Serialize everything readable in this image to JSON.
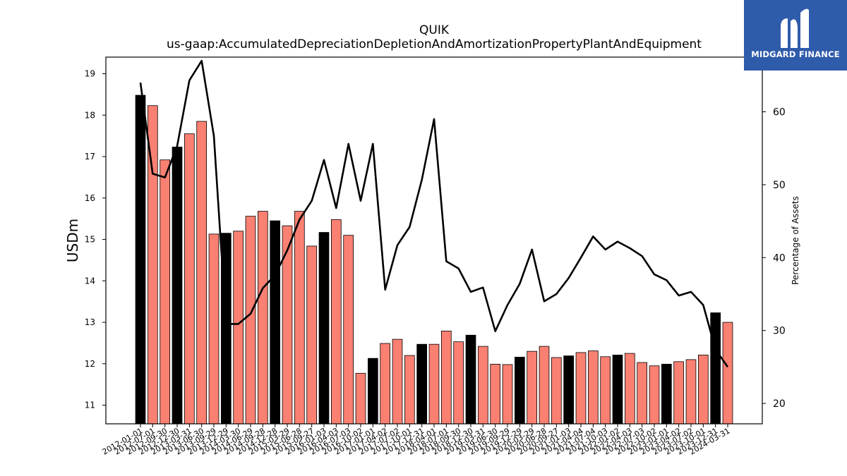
{
  "brand": {
    "name": "MIDGARD FINANCE",
    "logo_color": "#2f5bab"
  },
  "chart_data": {
    "type": "bar",
    "title": "QUIK",
    "subtitle": "us-gaap:AccumulatedDepreciationDepletionAndAmortizationPropertyPlantAndEquipment",
    "ylabel": "USDm",
    "y2label": "Percentage of Assets",
    "ylim": [
      10.55,
      19.4
    ],
    "y2lim": [
      17.2,
      67.5
    ],
    "yticks": [
      11,
      12,
      13,
      14,
      15,
      16,
      17,
      18,
      19
    ],
    "y2ticks": [
      20,
      30,
      40,
      50,
      60
    ],
    "categories": [
      "2012-01-01",
      "2012-07-01",
      "2012-09-30",
      "2012-12-30",
      "2013-03-31",
      "2013-06-30",
      "2013-09-29",
      "2013-12-29",
      "2014-03-30",
      "2014-06-29",
      "2014-09-28",
      "2014-12-28",
      "2015-03-29",
      "2015-06-28",
      "2015-09-27",
      "2016-01-03",
      "2016-04-03",
      "2016-07-03",
      "2016-10-02",
      "2017-01-01",
      "2017-04-02",
      "2017-07-02",
      "2017-10-01",
      "2017-12-31",
      "2018-04-01",
      "2018-07-01",
      "2018-09-30",
      "2018-12-30",
      "2019-03-31",
      "2019-06-30",
      "2019-09-29",
      "2019-12-29",
      "2020-03-29",
      "2020-06-28",
      "2020-09-27",
      "2021-01-03",
      "2021-04-04",
      "2021-07-04",
      "2021-10-03",
      "2022-01-02",
      "2022-04-03",
      "2022-07-03",
      "2022-10-02",
      "2023-01-01",
      "2023-04-02",
      "2023-07-02",
      "2023-10-01",
      "2023-12-31",
      "2024-03-31"
    ],
    "series": [
      {
        "type": "bar",
        "values": [
          18.48,
          18.23,
          16.92,
          17.23,
          17.55,
          17.85,
          15.13,
          15.15,
          15.2,
          15.56,
          15.68,
          15.45,
          15.33,
          15.68,
          14.84,
          15.17,
          15.48,
          15.1,
          11.77,
          12.13,
          12.49,
          12.59,
          12.2,
          12.47,
          12.47,
          12.79,
          12.53,
          12.69,
          12.42,
          11.99,
          11.98,
          12.16,
          12.3,
          12.42,
          12.15,
          12.19,
          12.27,
          12.31,
          12.17,
          12.21,
          12.25,
          12.03,
          11.95,
          11.99,
          12.05,
          12.1,
          12.21,
          13.23,
          13.0
        ],
        "colors": [
          "#000000",
          "#fa8072",
          "#fa8072",
          "#000000",
          "#fa8072",
          "#fa8072",
          "#fa8072",
          "#000000",
          "#fa8072",
          "#fa8072",
          "#fa8072",
          "#000000",
          "#fa8072",
          "#fa8072",
          "#fa8072",
          "#000000",
          "#fa8072",
          "#fa8072",
          "#fa8072",
          "#000000",
          "#fa8072",
          "#fa8072",
          "#fa8072",
          "#000000",
          "#fa8072",
          "#fa8072",
          "#fa8072",
          "#000000",
          "#fa8072",
          "#fa8072",
          "#fa8072",
          "#000000",
          "#fa8072",
          "#fa8072",
          "#fa8072",
          "#000000",
          "#fa8072",
          "#fa8072",
          "#fa8072",
          "#000000",
          "#fa8072",
          "#fa8072",
          "#fa8072",
          "#000000",
          "#fa8072",
          "#fa8072",
          "#fa8072",
          "#000000",
          "#fa8072"
        ]
      },
      {
        "type": "line",
        "axis": "right",
        "color": "#000000",
        "values": [
          64.0,
          51.5,
          51.0,
          55.3,
          64.3,
          67.0,
          56.7,
          30.9,
          30.9,
          32.3,
          35.8,
          37.6,
          41.0,
          45.2,
          47.8,
          53.4,
          46.8,
          55.6,
          47.8,
          55.6,
          35.6,
          41.7,
          44.2,
          50.7,
          59.0,
          39.5,
          38.5,
          35.3,
          35.9,
          29.9,
          33.5,
          36.4,
          41.1,
          34.0,
          35.0,
          37.2,
          40.0,
          42.9,
          41.1,
          42.2,
          41.3,
          40.2,
          37.7,
          36.9,
          34.8,
          35.3,
          33.5,
          27.4,
          25.0
        ]
      }
    ],
    "grid": false,
    "legend": "none"
  }
}
